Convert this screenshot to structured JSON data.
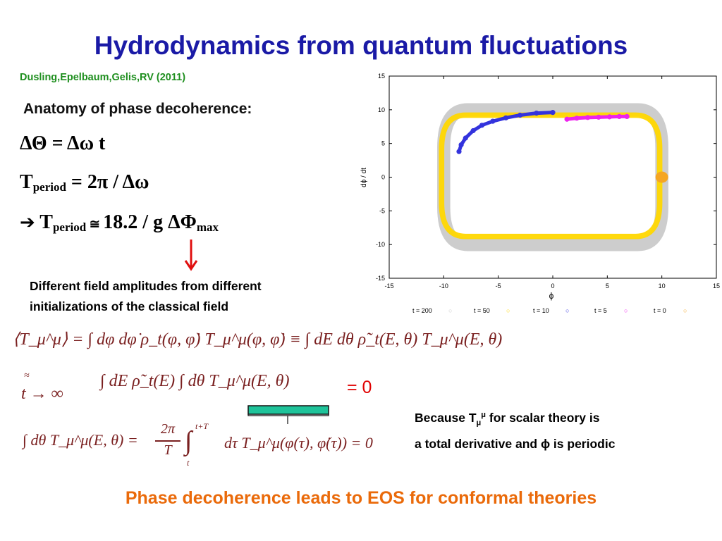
{
  "title": "Hydrodynamics from quantum fluctuations",
  "citation": "Dusling,Epelbaum,Gelis,RV (2011)",
  "anatomy_heading": "Anatomy of phase decoherence:",
  "eq1": "ΔΘ = Δω t",
  "eq2": {
    "lhs": "T",
    "sub": "period",
    "rhs": " = 2π /  Δω"
  },
  "eq3": {
    "arrow": "➔",
    "lhs": " T",
    "sub": "period",
    "approx": " ≅ ",
    "rhs": "18.2 / g ΔΦ",
    "rhs_sub": "max"
  },
  "note_lines": [
    "Different field amplitudes from different",
    "initializations of the classical field"
  ],
  "formula_1": "⟨T_μ^μ⟩ = ∫ dφ dφ̇ ρ_t(φ, φ̇) T_μ^μ(φ, φ̇) ≡ ∫ dE dθ ρ̃_t(E, θ) T_μ^μ(E, θ)",
  "formula_2": {
    "limit_top": "≈",
    "limit_main": "t → ∞",
    "body": "∫ dE ρ̃_t(E) ∫ dθ T_μ^μ(E, θ)"
  },
  "formula_3": {
    "left": "∫ dθ T_μ^μ(E, θ) =",
    "frac_num": "2π",
    "frac_den": "T",
    "int_upper": "t+T",
    "int_lower": "t",
    "right": "dτ T_μ^μ(φ(τ), φ̇(τ)) = 0"
  },
  "equals_zero": "= 0",
  "because_lines": {
    "l1_a": "Because T",
    "l1_sub": "μ",
    "l1_sup": "μ",
    "l1_b": "  for scalar theory is",
    "l2": "a total derivative and ϕ is periodic"
  },
  "footer": "Phase decoherence leads to EOS for conformal theories",
  "colors": {
    "title": "#1a1aa6",
    "citation": "#1f8f1f",
    "arrow": "#e01010",
    "bracket": "#1fc39a",
    "footer": "#ea6a0a",
    "series_t200": "#c8c8c8",
    "series_t50": "#ffd700",
    "series_t10": "#3333dd",
    "series_t5": "#ee22ee",
    "series_t0": "#f5a623"
  },
  "chart_data": {
    "type": "scatter",
    "xlabel": "ϕ",
    "ylabel": "dϕ / dt",
    "xlim": [
      -15,
      15
    ],
    "ylim": [
      -15,
      15
    ],
    "xticks": [
      -15,
      -10,
      -5,
      0,
      5,
      10,
      15
    ],
    "yticks": [
      -15,
      -10,
      -5,
      0,
      5,
      10,
      15
    ],
    "xtick_labels": [
      "-15",
      "-10",
      "-5",
      "0",
      "5",
      "10",
      "15"
    ],
    "ytick_labels": [
      "15",
      "10",
      "5",
      "0",
      "-5",
      "-10",
      "-15"
    ],
    "grid": false,
    "legend_position": "bottom",
    "series": [
      {
        "name": "t = 200",
        "color": "#c8c8c8",
        "kind": "loop",
        "x_range": [
          -10,
          10
        ],
        "y_range": [
          -10,
          10
        ],
        "thickness": 1.2
      },
      {
        "name": "t =  50",
        "color": "#ffd700",
        "kind": "loop",
        "x_range": [
          -10.2,
          9.8
        ],
        "y_range": [
          -8.8,
          9.2
        ],
        "thickness": 0.5
      },
      {
        "name": "t =  10",
        "color": "#3333dd",
        "kind": "arc",
        "points": [
          [
            -8.6,
            3.8
          ],
          [
            -8.4,
            4.8
          ],
          [
            -8,
            5.8
          ],
          [
            -7.3,
            6.9
          ],
          [
            -6.5,
            7.7
          ],
          [
            -5.5,
            8.3
          ],
          [
            -4.3,
            8.8
          ],
          [
            -3,
            9.2
          ],
          [
            -1.5,
            9.5
          ],
          [
            0,
            9.6
          ]
        ]
      },
      {
        "name": "t =  5",
        "color": "#ee22ee",
        "kind": "arc",
        "points": [
          [
            1.3,
            8.6
          ],
          [
            2.2,
            8.75
          ],
          [
            3.2,
            8.85
          ],
          [
            4.2,
            8.9
          ],
          [
            5.2,
            8.95
          ],
          [
            6.1,
            9.0
          ],
          [
            6.8,
            9.0
          ]
        ]
      },
      {
        "name": "t =  0",
        "color": "#f5a623",
        "kind": "blob",
        "points": [
          [
            10,
            0
          ]
        ]
      }
    ]
  }
}
